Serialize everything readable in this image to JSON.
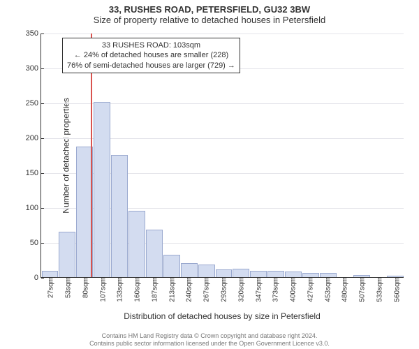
{
  "title_main": "33, RUSHES ROAD, PETERSFIELD, GU32 3BW",
  "title_sub": "Size of property relative to detached houses in Petersfield",
  "ylabel": "Number of detached properties",
  "xlabel": "Distribution of detached houses by size in Petersfield",
  "chart": {
    "type": "histogram",
    "ylim": [
      0,
      350
    ],
    "ytick_step": 50,
    "categories": [
      "27sqm",
      "53sqm",
      "80sqm",
      "107sqm",
      "133sqm",
      "160sqm",
      "187sqm",
      "213sqm",
      "240sqm",
      "267sqm",
      "293sqm",
      "320sqm",
      "347sqm",
      "373sqm",
      "400sqm",
      "427sqm",
      "453sqm",
      "480sqm",
      "507sqm",
      "533sqm",
      "560sqm"
    ],
    "values": [
      9,
      65,
      187,
      251,
      175,
      95,
      68,
      32,
      20,
      18,
      11,
      12,
      9,
      9,
      8,
      6,
      6,
      0,
      3,
      0,
      2
    ],
    "bar_fill": "#d3dcf0",
    "bar_stroke": "#9aa9cf",
    "grid_color": "#e4e4ea",
    "reference_line": {
      "index": 2.88,
      "color": "#d9534f"
    },
    "annotation": {
      "line1": "33 RUSHES ROAD: 103sqm",
      "line2": "← 24% of detached houses are smaller (228)",
      "line3": "76% of semi-detached houses are larger (729) →"
    }
  },
  "footer": {
    "line1": "Contains HM Land Registry data © Crown copyright and database right 2024.",
    "line2": "Contains public sector information licensed under the Open Government Licence v3.0."
  }
}
